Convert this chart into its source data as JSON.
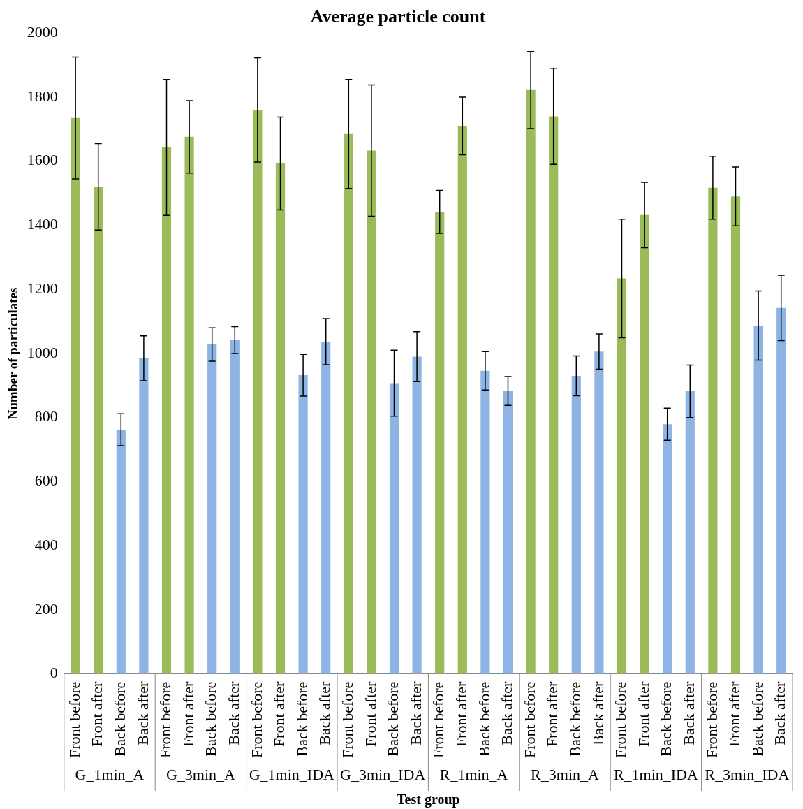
{
  "chart_data": {
    "type": "bar",
    "title": "Average particle count",
    "xlabel": "Test group",
    "ylabel": "Number of particulates",
    "categories": [
      "Front before",
      "Front after",
      "Back before",
      "Back after",
      "Front before",
      "Front after",
      "Back before",
      "Back after",
      "Front before",
      "Front after",
      "Back before",
      "Back after",
      "Front before",
      "Front after",
      "Back before",
      "Back after",
      "Front before",
      "Front after",
      "Back before",
      "Back after",
      "Front before",
      "Front after",
      "Back before",
      "Back after",
      "Front before",
      "Front after",
      "Back before",
      "Back after",
      "Front before",
      "Front after",
      "Back before",
      "Back after"
    ],
    "values": [
      1735,
      1520,
      762,
      985,
      1643,
      1676,
      1028,
      1042,
      1760,
      1593,
      932,
      1037,
      1685,
      1633,
      907,
      990,
      1442,
      1710,
      946,
      883,
      1822,
      1740,
      930,
      1006,
      1234,
      1432,
      779,
      882,
      1517,
      1490,
      1087,
      1142
    ],
    "errors": [
      190,
      135,
      50,
      70,
      212,
      113,
      52,
      42,
      163,
      145,
      65,
      72,
      170,
      205,
      103,
      78,
      67,
      90,
      60,
      45,
      120,
      150,
      62,
      55,
      185,
      102,
      50,
      82,
      98,
      92,
      108,
      102
    ],
    "colors": [
      "#9bbb59",
      "#9bbb59",
      "#8eb4e3",
      "#8eb4e3",
      "#9bbb59",
      "#9bbb59",
      "#8eb4e3",
      "#8eb4e3",
      "#9bbb59",
      "#9bbb59",
      "#8eb4e3",
      "#8eb4e3",
      "#9bbb59",
      "#9bbb59",
      "#8eb4e3",
      "#8eb4e3",
      "#9bbb59",
      "#9bbb59",
      "#8eb4e3",
      "#8eb4e3",
      "#9bbb59",
      "#9bbb59",
      "#8eb4e3",
      "#8eb4e3",
      "#9bbb59",
      "#9bbb59",
      "#8eb4e3",
      "#8eb4e3",
      "#9bbb59",
      "#9bbb59",
      "#8eb4e3",
      "#8eb4e3"
    ],
    "annotations": [
      "G_1min_A",
      "G_3min_A",
      "G_1min_IDA",
      "G_3min_IDA",
      "R_1min_A",
      "R_3min_A",
      "R_1min_IDA",
      "R_3min_IDA"
    ],
    "ylim": [
      0,
      2000
    ],
    "yticks": [
      0,
      200,
      400,
      600,
      800,
      1000,
      1200,
      1400,
      1600,
      1800,
      2000
    ],
    "grid": false,
    "legend": false
  }
}
